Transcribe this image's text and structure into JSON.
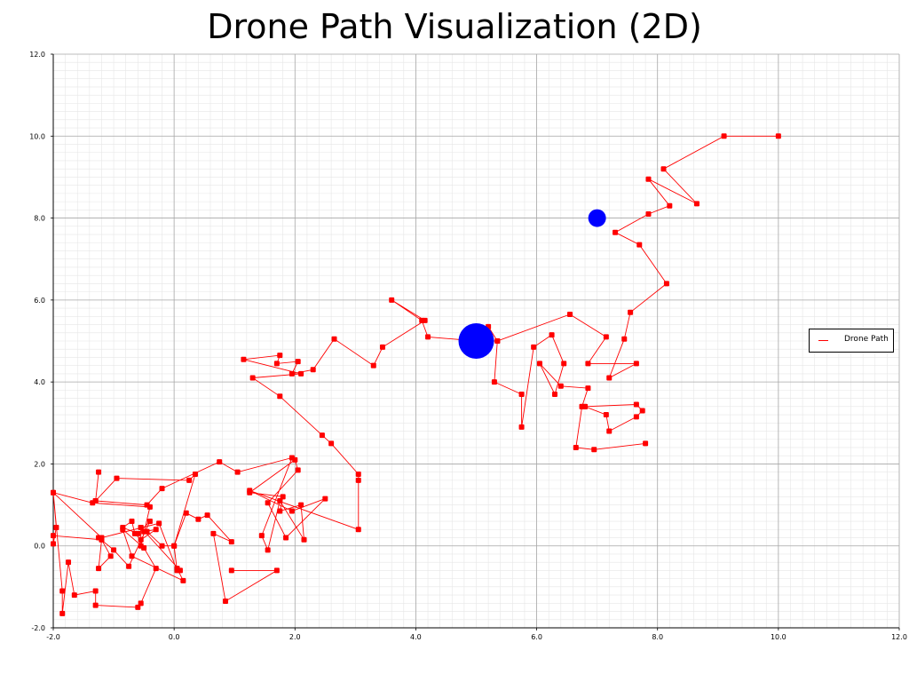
{
  "chart_data": {
    "type": "line",
    "title": "Drone Path Visualization (2D)",
    "xlabel": "",
    "ylabel": "",
    "xlim": [
      -2.0,
      12.0
    ],
    "ylim": [
      -2.0,
      12.0
    ],
    "xticks": [
      "-2.0",
      "0.0",
      "2.0",
      "4.0",
      "6.0",
      "8.0",
      "10.0",
      "12.0"
    ],
    "yticks": [
      "-2.0",
      "0.0",
      "2.0",
      "4.0",
      "6.0",
      "8.0",
      "10.0",
      "12.0"
    ],
    "grid": true,
    "minor_grid": true,
    "legend_position": "right",
    "series": [
      {
        "name": "Drone Path",
        "color": "#ff0000",
        "points": [
          [
            10.0,
            10.0
          ],
          [
            9.1,
            10.0
          ],
          [
            8.1,
            9.2
          ],
          [
            8.65,
            8.35
          ],
          [
            7.85,
            8.95
          ],
          [
            8.2,
            8.3
          ],
          [
            7.85,
            8.1
          ],
          [
            7.3,
            7.65
          ],
          [
            7.7,
            7.35
          ],
          [
            8.15,
            6.4
          ],
          [
            7.55,
            5.7
          ],
          [
            7.45,
            5.05
          ],
          [
            7.2,
            4.1
          ],
          [
            7.65,
            4.45
          ],
          [
            6.85,
            4.45
          ],
          [
            7.15,
            5.1
          ],
          [
            6.55,
            5.65
          ],
          [
            5.35,
            5.0
          ],
          [
            5.2,
            5.35
          ],
          [
            5.0,
            5.0
          ],
          [
            4.2,
            5.1
          ],
          [
            4.1,
            5.5
          ],
          [
            3.6,
            6.0
          ],
          [
            4.15,
            5.5
          ],
          [
            3.45,
            4.85
          ],
          [
            3.3,
            4.4
          ],
          [
            2.65,
            5.05
          ],
          [
            2.3,
            4.3
          ],
          [
            1.95,
            4.2
          ],
          [
            2.05,
            4.5
          ],
          [
            1.7,
            4.45
          ],
          [
            1.75,
            4.65
          ],
          [
            1.15,
            4.55
          ],
          [
            2.1,
            4.2
          ],
          [
            1.3,
            4.1
          ],
          [
            1.75,
            3.65
          ],
          [
            2.45,
            2.7
          ],
          [
            2.6,
            2.5
          ],
          [
            3.05,
            1.75
          ],
          [
            3.05,
            1.6
          ],
          [
            3.05,
            0.4
          ],
          [
            1.25,
            1.35
          ],
          [
            1.95,
            0.85
          ],
          [
            2.5,
            1.15
          ],
          [
            1.85,
            0.2
          ],
          [
            1.55,
            1.05
          ],
          [
            2.05,
            1.85
          ],
          [
            2.0,
            2.1
          ],
          [
            1.25,
            1.3
          ],
          [
            1.8,
            1.2
          ],
          [
            1.75,
            0.85
          ],
          [
            2.1,
            1.0
          ],
          [
            2.15,
            0.15
          ],
          [
            1.75,
            1.1
          ],
          [
            1.55,
            -0.1
          ],
          [
            1.45,
            0.25
          ],
          [
            1.95,
            2.15
          ],
          [
            1.05,
            1.8
          ],
          [
            0.75,
            2.05
          ],
          [
            -0.2,
            1.4
          ],
          [
            -0.45,
            1.0
          ],
          [
            -1.3,
            1.1
          ],
          [
            -1.25,
            1.8
          ],
          [
            -1.3,
            1.1
          ],
          [
            -0.95,
            1.65
          ],
          [
            0.25,
            1.6
          ],
          [
            0.35,
            1.75
          ],
          [
            0.0,
            0.0
          ],
          [
            -0.2,
            0.0
          ],
          [
            -0.45,
            0.35
          ],
          [
            -0.55,
            0.45
          ],
          [
            -0.5,
            0.35
          ],
          [
            -0.3,
            0.4
          ],
          [
            -0.55,
            0.15
          ],
          [
            -0.65,
            0.3
          ],
          [
            -0.7,
            0.6
          ],
          [
            -0.85,
            0.45
          ],
          [
            -0.6,
            0.3
          ],
          [
            -0.4,
            0.6
          ],
          [
            -0.75,
            -0.5
          ],
          [
            -1.0,
            -0.1
          ],
          [
            -1.25,
            0.2
          ],
          [
            -1.2,
            0.15
          ],
          [
            -1.05,
            -0.25
          ],
          [
            -1.25,
            -0.55
          ],
          [
            -1.2,
            0.15
          ],
          [
            -2.0,
            0.25
          ],
          [
            -2.0,
            0.05
          ],
          [
            -1.95,
            0.45
          ],
          [
            -2.0,
            1.3
          ],
          [
            -1.35,
            1.05
          ],
          [
            -0.4,
            0.95
          ],
          [
            -0.55,
            0.0
          ],
          [
            -0.55,
            0.45
          ],
          [
            0.1,
            -0.6
          ],
          [
            0.05,
            -0.55
          ],
          [
            0.15,
            -0.85
          ],
          [
            -0.7,
            -0.25
          ],
          [
            -0.85,
            0.4
          ],
          [
            -0.5,
            -0.05
          ],
          [
            -0.3,
            -0.55
          ],
          [
            -0.55,
            -1.4
          ],
          [
            -0.6,
            -1.5
          ],
          [
            -1.3,
            -1.45
          ],
          [
            -1.3,
            -1.1
          ],
          [
            -1.65,
            -1.2
          ],
          [
            -1.75,
            -0.4
          ],
          [
            -1.85,
            -1.65
          ],
          [
            -1.85,
            -1.1
          ],
          [
            -2.0,
            1.3
          ],
          [
            -1.2,
            0.2
          ],
          [
            -0.25,
            0.55
          ],
          [
            0.05,
            -0.6
          ],
          [
            0.0,
            0.0
          ],
          [
            0.2,
            0.8
          ],
          [
            0.4,
            0.65
          ],
          [
            0.55,
            0.75
          ],
          [
            0.95,
            0.1
          ],
          [
            0.65,
            0.3
          ],
          [
            0.85,
            -1.35
          ],
          [
            1.7,
            -0.6
          ],
          [
            0.95,
            -0.6
          ]
        ]
      },
      {
        "name": "Drone Path",
        "color": "#ff0000",
        "points": [
          [
            5.0,
            5.0
          ],
          [
            5.35,
            5.0
          ],
          [
            5.3,
            4.0
          ],
          [
            5.75,
            3.7
          ],
          [
            5.75,
            2.9
          ],
          [
            5.95,
            4.85
          ],
          [
            6.25,
            5.15
          ],
          [
            6.45,
            4.45
          ],
          [
            6.3,
            3.7
          ],
          [
            6.05,
            4.45
          ],
          [
            6.4,
            3.9
          ],
          [
            6.85,
            3.85
          ],
          [
            6.75,
            3.4
          ],
          [
            6.8,
            3.4
          ],
          [
            7.15,
            3.2
          ],
          [
            7.2,
            2.8
          ],
          [
            7.65,
            3.15
          ],
          [
            7.75,
            3.3
          ],
          [
            7.65,
            3.45
          ],
          [
            6.8,
            3.4
          ],
          [
            6.75,
            3.4
          ],
          [
            6.65,
            2.4
          ],
          [
            6.95,
            2.35
          ],
          [
            7.8,
            2.5
          ]
        ]
      }
    ],
    "markers": [
      {
        "x": 5.0,
        "y": 5.0,
        "size": "large",
        "color": "#0000ff"
      },
      {
        "x": 7.0,
        "y": 8.0,
        "size": "small",
        "color": "#0000ff"
      }
    ]
  },
  "legend": {
    "label": "Drone Path"
  }
}
